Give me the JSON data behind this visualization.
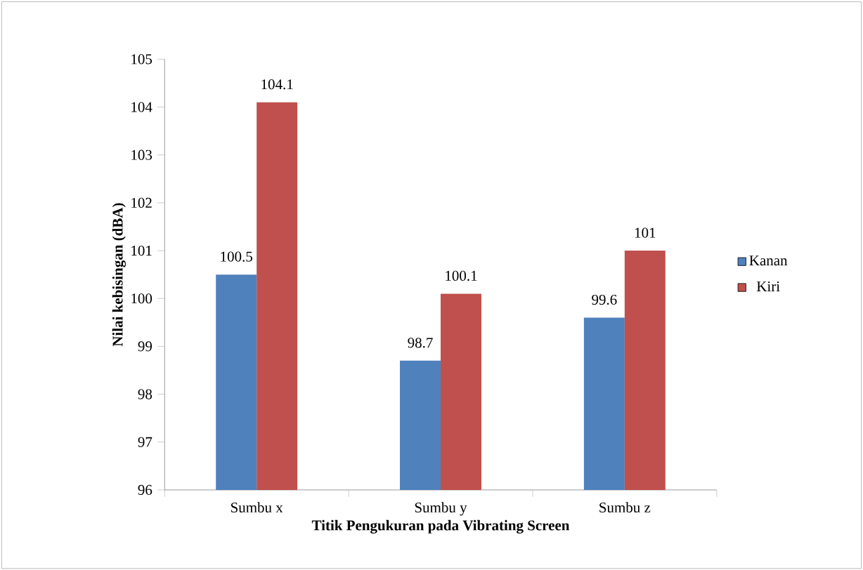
{
  "chart_data": {
    "type": "bar",
    "xlabel": "Titik Pengukuran pada Vibrating Screen",
    "ylabel": "Nilai kebisingan (dBA)",
    "categories": [
      "Sumbu x",
      "Sumbu y",
      "Sumbu z"
    ],
    "series": [
      {
        "name": "Kanan",
        "color": "#4f81bd",
        "values": [
          100.5,
          98.7,
          99.6
        ]
      },
      {
        "name": "Kiri",
        "color": "#c0504d",
        "values": [
          104.1,
          100.1,
          101
        ]
      }
    ],
    "ylim": [
      96,
      105
    ],
    "yticks": [
      96,
      97,
      98,
      99,
      100,
      101,
      102,
      103,
      104,
      105
    ],
    "data_labels": true,
    "legend": "right",
    "grid": false
  }
}
